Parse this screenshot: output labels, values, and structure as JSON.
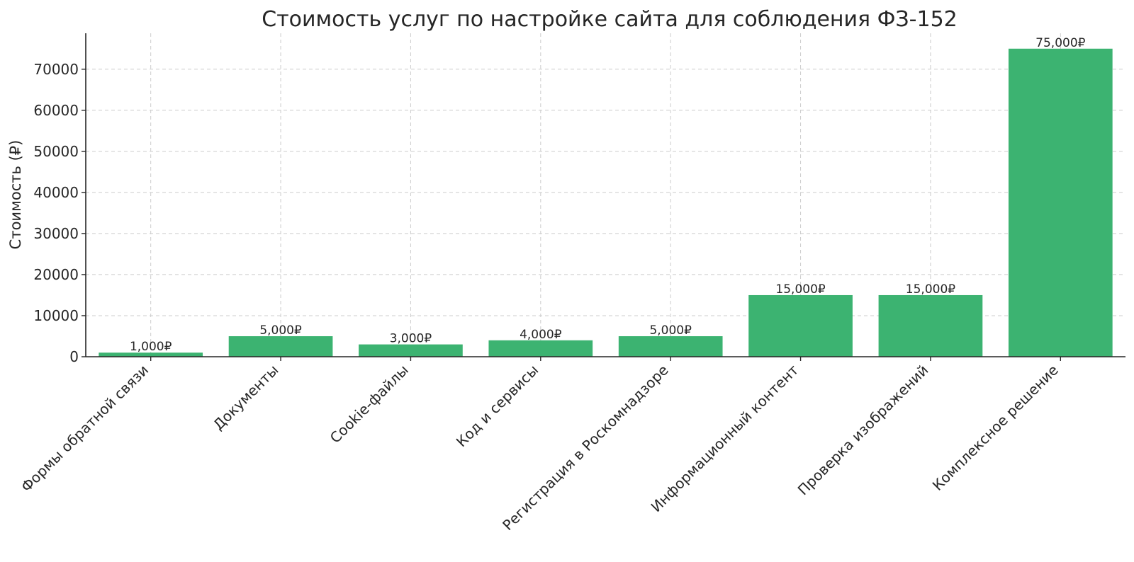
{
  "chart_data": {
    "type": "bar",
    "title": "Стоимость услуг по настройке сайта для соблюдения ФЗ-152",
    "xlabel": "",
    "ylabel": "Стоимость (₽)",
    "categories": [
      "Формы обратной связи",
      "Документы",
      "Cookie-файлы",
      "Код и сервисы",
      "Регистрация в Роскомнадзоре",
      "Информационный контент",
      "Проверка изображений",
      "Комплексное решение"
    ],
    "values": [
      1000,
      5000,
      3000,
      4000,
      5000,
      15000,
      15000,
      75000
    ],
    "data_labels": [
      "1,000₽",
      "5,000₽",
      "3,000₽",
      "4,000₽",
      "5,000₽",
      "15,000₽",
      "15,000₽",
      "75,000₽"
    ],
    "yticks": [
      0,
      10000,
      20000,
      30000,
      40000,
      50000,
      60000,
      70000
    ],
    "ylim": [
      0,
      78750
    ],
    "grid": true,
    "bar_color": "#3cb371"
  }
}
